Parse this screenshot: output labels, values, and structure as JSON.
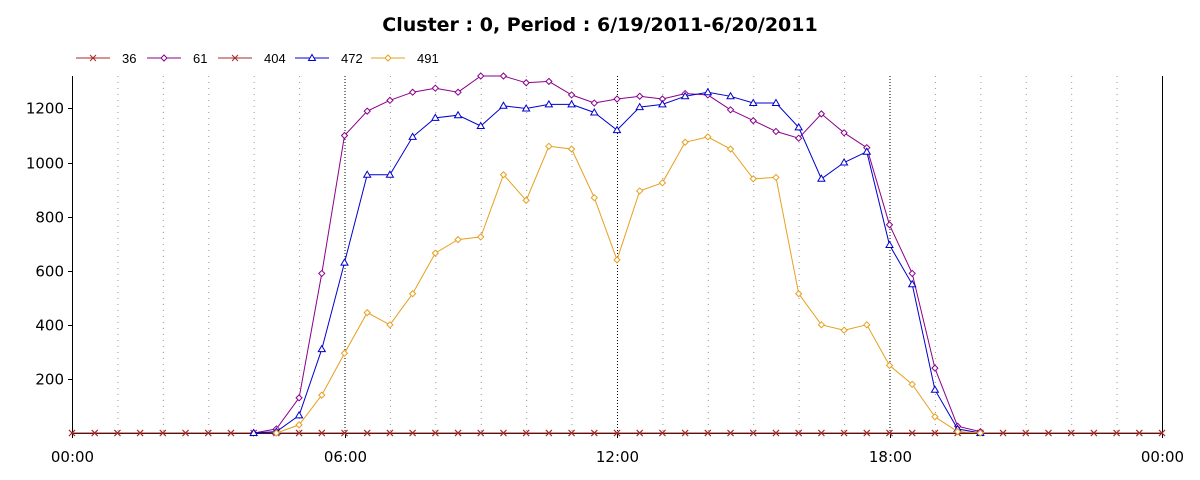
{
  "chart_data": {
    "type": "line",
    "title": "Cluster : 0, Period : 6/19/2011-6/20/2011",
    "xlabel": "",
    "ylabel": "",
    "x_tick_labels": [
      "00:00",
      "06:00",
      "12:00",
      "18:00",
      "00:00"
    ],
    "x_tick_hours": [
      0,
      6,
      12,
      18,
      24
    ],
    "xlim": [
      0,
      24
    ],
    "y_ticks": [
      200,
      400,
      600,
      800,
      1000,
      1200
    ],
    "ylim": [
      0,
      1320
    ],
    "grid": "vertical dotted",
    "legend": "top-left",
    "x_hours": [
      0,
      0.5,
      1,
      1.5,
      2,
      2.5,
      3,
      3.5,
      4,
      4.5,
      5,
      5.5,
      6,
      6.5,
      7,
      7.5,
      8,
      8.5,
      9,
      9.5,
      10,
      10.5,
      11,
      11.5,
      12,
      12.5,
      13,
      13.5,
      14,
      14.5,
      15,
      15.5,
      16,
      16.5,
      17,
      17.5,
      18,
      18.5,
      19,
      19.5,
      20,
      20.5,
      21,
      21.5,
      22,
      22.5,
      23,
      23.5,
      24
    ],
    "series": [
      {
        "name": "36",
        "color": "#a52a2a",
        "marker": "x",
        "values": [
          0,
          0,
          0,
          0,
          0,
          0,
          0,
          0,
          0,
          0,
          0,
          0,
          0,
          0,
          0,
          0,
          0,
          0,
          0,
          0,
          0,
          0,
          0,
          0,
          0,
          0,
          0,
          0,
          0,
          0,
          0,
          0,
          0,
          0,
          0,
          0,
          0,
          0,
          0,
          0,
          0,
          0,
          0,
          0,
          0,
          0,
          0,
          0,
          0
        ]
      },
      {
        "name": "61",
        "color": "#8b008b",
        "marker": "diamond",
        "values": [
          null,
          null,
          null,
          null,
          null,
          null,
          null,
          null,
          0,
          15,
          130,
          590,
          1100,
          1190,
          1230,
          1260,
          1275,
          1260,
          1320,
          1320,
          1295,
          1300,
          1250,
          1220,
          1235,
          1245,
          1235,
          1255,
          1250,
          1195,
          1155,
          1115,
          1090,
          1180,
          1110,
          1055,
          770,
          590,
          240,
          25,
          5,
          null,
          null,
          null,
          null,
          null,
          null,
          null,
          null
        ]
      },
      {
        "name": "404",
        "color": "#a52a2a",
        "marker": "x",
        "values": [
          0,
          0,
          0,
          0,
          0,
          0,
          0,
          0,
          0,
          0,
          0,
          0,
          0,
          0,
          0,
          0,
          0,
          0,
          0,
          0,
          0,
          0,
          0,
          0,
          0,
          0,
          0,
          0,
          0,
          0,
          0,
          0,
          0,
          0,
          0,
          0,
          0,
          0,
          0,
          0,
          0,
          0,
          0,
          0,
          0,
          0,
          0,
          0,
          0
        ]
      },
      {
        "name": "472",
        "color": "#0000cc",
        "marker": "triangle",
        "values": [
          null,
          null,
          null,
          null,
          null,
          null,
          null,
          null,
          0,
          5,
          65,
          310,
          630,
          955,
          955,
          1095,
          1165,
          1175,
          1135,
          1210,
          1200,
          1215,
          1215,
          1185,
          1120,
          1205,
          1215,
          1245,
          1260,
          1245,
          1220,
          1220,
          1130,
          940,
          1000,
          1040,
          695,
          550,
          160,
          15,
          0,
          null,
          null,
          null,
          null,
          null,
          null,
          null,
          null
        ]
      },
      {
        "name": "491",
        "color": "#e6a020",
        "marker": "diamond",
        "values": [
          null,
          null,
          null,
          null,
          null,
          null,
          null,
          null,
          null,
          0,
          30,
          140,
          295,
          445,
          400,
          515,
          665,
          715,
          725,
          955,
          860,
          1060,
          1050,
          870,
          640,
          895,
          925,
          1075,
          1095,
          1050,
          940,
          945,
          515,
          400,
          380,
          400,
          250,
          180,
          60,
          5,
          0,
          null,
          null,
          null,
          null,
          null,
          null,
          null,
          null
        ]
      }
    ]
  }
}
